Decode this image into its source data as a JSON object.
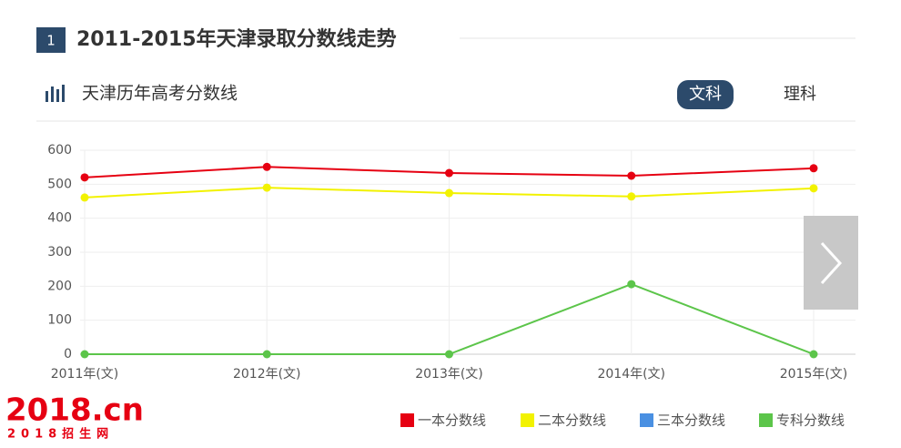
{
  "header": {
    "badge": "1",
    "title": "2011-2015年天津录取分数线走势"
  },
  "panel": {
    "title": "天津历年高考分数线",
    "tabs": [
      "文科",
      "理科"
    ]
  },
  "chart_data": {
    "type": "line",
    "categories": [
      "2011年(文)",
      "2012年(文)",
      "2013年(文)",
      "2014年(文)",
      "2015年(文)"
    ],
    "series": [
      {
        "name": "一本分数线",
        "color": "#e60012",
        "values": [
          520,
          551,
          533,
          525,
          547
        ]
      },
      {
        "name": "二本分数线",
        "color": "#f2f200",
        "values": [
          461,
          490,
          474,
          464,
          488
        ]
      },
      {
        "name": "三本分数线",
        "color": "#4a90e2",
        "values": [
          null,
          null,
          null,
          null,
          null
        ]
      },
      {
        "name": "专科分数线",
        "color": "#5cc54a",
        "values": [
          0,
          0,
          0,
          206,
          0
        ]
      }
    ],
    "ylim": [
      0,
      600
    ],
    "yticks": [
      0,
      100,
      200,
      300,
      400,
      500,
      600
    ],
    "grid": true,
    "legend": "bottom-right"
  },
  "logo": {
    "main": "2018.cn",
    "sub": "2018招生网"
  }
}
